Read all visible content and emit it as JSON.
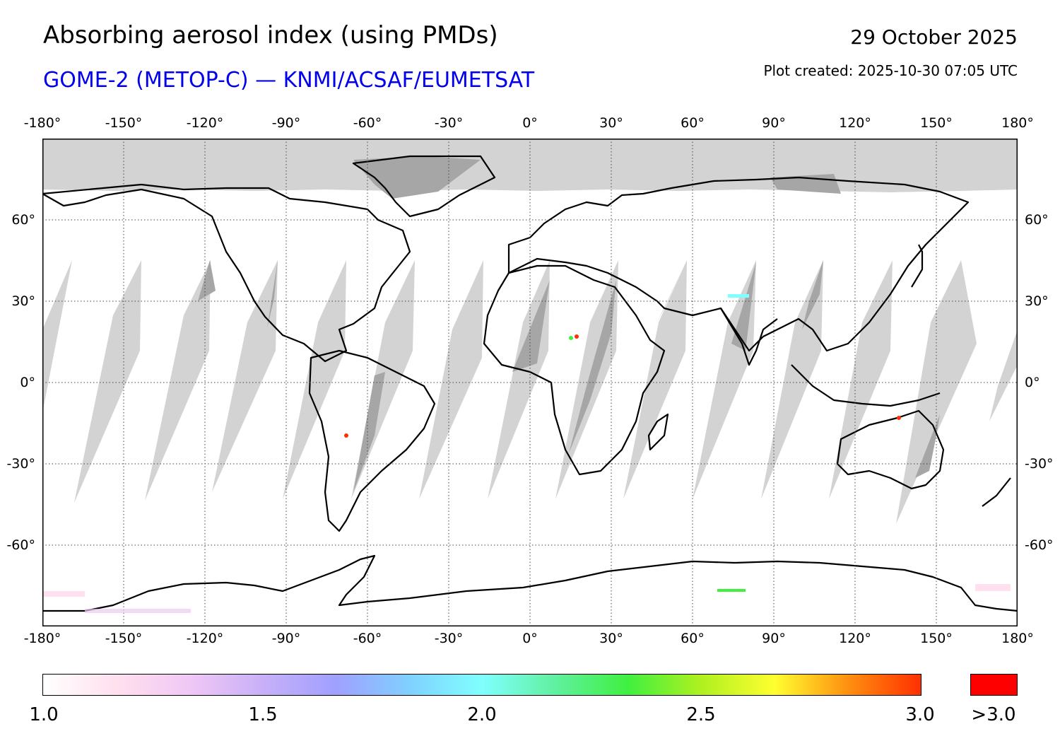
{
  "header": {
    "title": "Absorbing aerosol index (using PMDs)",
    "subtitle": "GOME-2 (METOP-C) — KNMI/ACSAF/EUMETSAT",
    "date": "29 October 2025",
    "plot_created": "Plot created: 2025-10-30 07:05 UTC"
  },
  "map": {
    "projection": "plate carree (equirectangular)",
    "lon_range": [
      -180,
      180
    ],
    "lat_range": [
      -90,
      90
    ],
    "lon_ticks": [
      "-180°",
      "-150°",
      "-120°",
      "-90°",
      "-60°",
      "-30°",
      "0°",
      "30°",
      "60°",
      "90°",
      "120°",
      "150°",
      "180°"
    ],
    "lat_ticks": [
      "60°",
      "30°",
      "0°",
      "-30°",
      "-60°"
    ],
    "gridlines": "dotted",
    "colors": {
      "no_data_polar": "#d3d3d3",
      "orbit_gap_ocean": "#d3d3d3",
      "orbit_gap_land": "#a6a6a6",
      "coastline": "#000000",
      "background": "#ffffff"
    }
  },
  "colorbar": {
    "min": 1.0,
    "max": 3.0,
    "tick_labels": [
      "1.0",
      "1.5",
      "2.0",
      "2.5",
      "3.0"
    ],
    "overflow_label": ">3.0",
    "overflow_color": "#ff0000",
    "stops": [
      "#ffffff",
      "#ffe0ee",
      "#f0c8f5",
      "#c8b0f8",
      "#a0a0ff",
      "#80d0ff",
      "#80ffff",
      "#60f0a0",
      "#40f040",
      "#b0f020",
      "#ffff30",
      "#ff9010",
      "#ff3000"
    ]
  }
}
